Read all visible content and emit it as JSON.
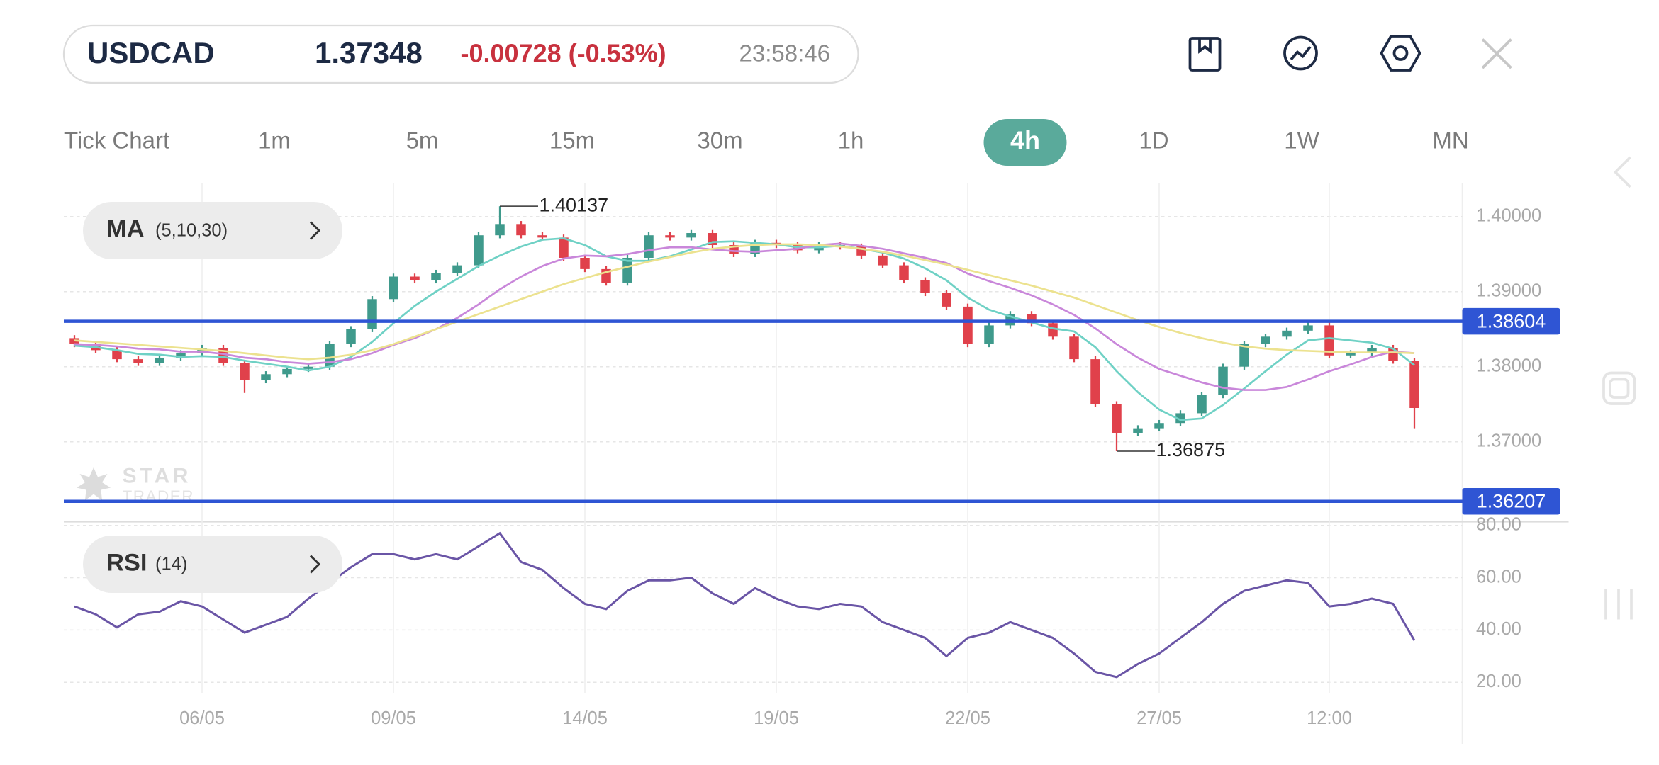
{
  "header": {
    "symbol": "USDCAD",
    "price": "1.37348",
    "change": "-0.00728 (-0.53%)",
    "time": "23:58:46"
  },
  "timeframes": [
    {
      "label": "Tick Chart",
      "active": false
    },
    {
      "label": "1m",
      "active": false
    },
    {
      "label": "5m",
      "active": false
    },
    {
      "label": "15m",
      "active": false
    },
    {
      "label": "30m",
      "active": false
    },
    {
      "label": "1h",
      "active": false
    },
    {
      "label": "4h",
      "active": true
    },
    {
      "label": "1D",
      "active": false
    },
    {
      "label": "1W",
      "active": false
    },
    {
      "label": "MN",
      "active": false
    }
  ],
  "watermark": [
    "STAR",
    "TRADER"
  ],
  "chart_data": [
    {
      "type": "candlestick",
      "indicator_label": "MA",
      "indicator_params": "(5,10,30)",
      "up_color": "#3f9a8c",
      "down_color": "#e0414b",
      "grid": true,
      "ylim": [
        1.3595,
        1.4045
      ],
      "yticks": [
        {
          "value": 1.37,
          "label": "1.37000"
        },
        {
          "value": 1.38,
          "label": "1.38000"
        },
        {
          "value": 1.39,
          "label": "1.39000"
        },
        {
          "value": 1.4,
          "label": "1.40000"
        }
      ],
      "open": [
        1.3838,
        1.383,
        1.3822,
        1.381,
        1.3805,
        1.3812,
        1.3818,
        1.3825,
        1.3805,
        1.3782,
        1.379,
        1.3797,
        1.38,
        1.383,
        1.385,
        1.389,
        1.392,
        1.3915,
        1.3925,
        1.3935,
        1.3975,
        1.399,
        1.3975,
        1.3972,
        1.3945,
        1.393,
        1.3912,
        1.3945,
        1.3975,
        1.3972,
        1.3978,
        1.3962,
        1.395,
        1.3965,
        1.3962,
        1.3955,
        1.3962,
        1.396,
        1.3948,
        1.3935,
        1.3915,
        1.3898,
        1.388,
        1.383,
        1.3855,
        1.387,
        1.3858,
        1.384,
        1.381,
        1.375,
        1.3712,
        1.3718,
        1.3725,
        1.3738,
        1.3762,
        1.38,
        1.383,
        1.384,
        1.3848,
        1.3855,
        1.3815,
        1.3818,
        1.3825,
        1.3808
      ],
      "high": [
        1.3842,
        1.3834,
        1.3826,
        1.3814,
        1.3816,
        1.3822,
        1.3829,
        1.3829,
        1.3809,
        1.3794,
        1.3801,
        1.3804,
        1.3834,
        1.3854,
        1.3894,
        1.3924,
        1.3924,
        1.3929,
        1.3939,
        1.3979,
        1.40137,
        1.3994,
        1.3979,
        1.3976,
        1.3949,
        1.3934,
        1.3949,
        1.3979,
        1.3979,
        1.3982,
        1.3982,
        1.3966,
        1.3969,
        1.3969,
        1.3966,
        1.3966,
        1.3966,
        1.3964,
        1.3952,
        1.3939,
        1.3919,
        1.3902,
        1.3884,
        1.3859,
        1.3874,
        1.3874,
        1.3862,
        1.3844,
        1.3814,
        1.3754,
        1.3722,
        1.3729,
        1.3742,
        1.3766,
        1.3804,
        1.3834,
        1.3844,
        1.3852,
        1.3859,
        1.3859,
        1.3822,
        1.3829,
        1.3829,
        1.3812
      ],
      "low": [
        1.3826,
        1.3818,
        1.3806,
        1.3801,
        1.3801,
        1.3808,
        1.3814,
        1.3801,
        1.3765,
        1.3778,
        1.3786,
        1.3793,
        1.3796,
        1.3826,
        1.3846,
        1.3886,
        1.3911,
        1.3911,
        1.3921,
        1.3931,
        1.3971,
        1.3971,
        1.3968,
        1.3941,
        1.3926,
        1.3908,
        1.3908,
        1.3941,
        1.3968,
        1.3968,
        1.3958,
        1.3946,
        1.3946,
        1.3958,
        1.3951,
        1.3951,
        1.3956,
        1.3944,
        1.3931,
        1.3911,
        1.3894,
        1.3876,
        1.3826,
        1.3826,
        1.3851,
        1.3854,
        1.3836,
        1.3806,
        1.3746,
        1.36875,
        1.3708,
        1.3714,
        1.3721,
        1.3734,
        1.3758,
        1.3796,
        1.3826,
        1.3836,
        1.3844,
        1.3811,
        1.3811,
        1.3814,
        1.3804,
        1.3718
      ],
      "close": [
        1.383,
        1.3822,
        1.381,
        1.3805,
        1.3812,
        1.3818,
        1.3825,
        1.3805,
        1.3782,
        1.379,
        1.3797,
        1.38,
        1.383,
        1.385,
        1.389,
        1.392,
        1.3915,
        1.3925,
        1.3935,
        1.3975,
        1.399,
        1.3975,
        1.3972,
        1.3945,
        1.393,
        1.3912,
        1.3945,
        1.3975,
        1.3972,
        1.3978,
        1.3962,
        1.395,
        1.3965,
        1.3962,
        1.3955,
        1.3962,
        1.396,
        1.3948,
        1.3935,
        1.3915,
        1.3898,
        1.388,
        1.383,
        1.3855,
        1.387,
        1.3858,
        1.384,
        1.381,
        1.375,
        1.3712,
        1.3718,
        1.3725,
        1.3738,
        1.3762,
        1.38,
        1.383,
        1.384,
        1.3848,
        1.3855,
        1.3815,
        1.3818,
        1.3825,
        1.3808,
        1.3745
      ],
      "overlays": [
        {
          "color": "#6fd1c5",
          "values": [
            1.3828,
            1.3826,
            1.3822,
            1.3817,
            1.3816,
            1.3813,
            1.3814,
            1.3813,
            1.3808,
            1.3804,
            1.38,
            1.3795,
            1.38,
            1.3813,
            1.3833,
            1.3858,
            1.3881,
            1.39,
            1.3917,
            1.3934,
            1.3948,
            1.396,
            1.3969,
            1.3971,
            1.3962,
            1.3947,
            1.3941,
            1.3941,
            1.3947,
            1.3956,
            1.3966,
            1.3967,
            1.3965,
            1.3963,
            1.3959,
            1.3959,
            1.3961,
            1.3957,
            1.3952,
            1.3944,
            1.3931,
            1.3915,
            1.3892,
            1.3876,
            1.3867,
            1.3859,
            1.3851,
            1.3847,
            1.3826,
            1.3794,
            1.3766,
            1.3743,
            1.3729,
            1.3731,
            1.3749,
            1.3771,
            1.3794,
            1.3816,
            1.3835,
            1.3838,
            1.3835,
            1.3832,
            1.3824,
            1.3802
          ]
        },
        {
          "color": "#c987da",
          "values": [
            1.383,
            1.3829,
            1.3827,
            1.3824,
            1.3823,
            1.382,
            1.382,
            1.3817,
            1.3812,
            1.381,
            1.3806,
            1.3804,
            1.3806,
            1.381,
            1.3818,
            1.3829,
            1.3838,
            1.385,
            1.3865,
            1.3883,
            1.3903,
            1.392,
            1.3934,
            1.3944,
            1.3948,
            1.3947,
            1.395,
            1.3955,
            1.3959,
            1.3959,
            1.3956,
            1.3954,
            1.3953,
            1.3955,
            1.3957,
            1.3962,
            1.3964,
            1.3961,
            1.3957,
            1.3951,
            1.3945,
            1.3938,
            1.3924,
            1.3914,
            1.3905,
            1.3895,
            1.3883,
            1.3869,
            1.3851,
            1.383,
            1.3812,
            1.3797,
            1.3788,
            1.3779,
            1.3772,
            1.3769,
            1.3769,
            1.3773,
            1.3783,
            1.3794,
            1.3803,
            1.3813,
            1.382,
            1.3818
          ]
        },
        {
          "color": "#ece28f",
          "values": [
            1.3835,
            1.3833,
            1.3831,
            1.3829,
            1.3827,
            1.3825,
            1.3823,
            1.3821,
            1.3818,
            1.3815,
            1.3812,
            1.381,
            1.3812,
            1.3816,
            1.3822,
            1.383,
            1.384,
            1.385,
            1.386,
            1.387,
            1.388,
            1.389,
            1.39,
            1.391,
            1.3918,
            1.3926,
            1.3933,
            1.394,
            1.3946,
            1.3952,
            1.3957,
            1.396,
            1.3962,
            1.3963,
            1.3963,
            1.3962,
            1.396,
            1.3957,
            1.3953,
            1.3948,
            1.3942,
            1.3936,
            1.3929,
            1.3922,
            1.3915,
            1.3908,
            1.39,
            1.3892,
            1.3882,
            1.3872,
            1.3862,
            1.3853,
            1.3845,
            1.3838,
            1.3832,
            1.3827,
            1.3824,
            1.3822,
            1.3821,
            1.382,
            1.3819,
            1.3819,
            1.3819,
            1.3818
          ]
        }
      ],
      "hlines": [
        {
          "value": 1.38604,
          "color": "#2f55d4"
        },
        {
          "value": 1.36207,
          "color": "#2f55d4"
        }
      ]
    },
    {
      "type": "line",
      "indicator_label": "RSI",
      "indicator_params": "(14)",
      "color": "#6a55a6",
      "grid": true,
      "ylim": [
        16,
        81
      ],
      "yticks": [
        {
          "value": 20,
          "label": "20.00"
        },
        {
          "value": 40,
          "label": "40.00"
        },
        {
          "value": 60,
          "label": "60.00"
        },
        {
          "value": 80,
          "label": "80.00"
        }
      ],
      "categories": [
        null,
        null,
        null,
        null,
        null,
        null,
        "06/05",
        null,
        null,
        null,
        null,
        null,
        null,
        null,
        null,
        "09/05",
        null,
        null,
        null,
        null,
        null,
        null,
        null,
        null,
        "14/05",
        null,
        null,
        null,
        null,
        null,
        null,
        null,
        null,
        "19/05",
        null,
        null,
        null,
        null,
        null,
        null,
        null,
        null,
        "22/05",
        null,
        null,
        null,
        null,
        null,
        null,
        null,
        null,
        "27/05",
        null,
        null,
        null,
        null,
        null,
        null,
        null,
        "12:00",
        null,
        null,
        null,
        null
      ],
      "values": [
        49,
        46,
        41,
        46,
        47,
        51,
        49,
        44,
        39,
        42,
        45,
        52,
        58,
        64,
        69,
        69,
        67,
        69,
        67,
        72,
        77,
        66,
        63,
        56,
        50,
        48,
        55,
        59,
        59,
        60,
        54,
        50,
        56,
        52,
        49,
        48,
        50,
        49,
        43,
        40,
        37,
        30,
        37,
        39,
        43,
        40,
        37,
        31,
        24,
        22,
        27,
        31,
        37,
        43,
        50,
        55,
        57,
        59,
        58,
        49,
        50,
        52,
        50,
        36
      ]
    }
  ]
}
